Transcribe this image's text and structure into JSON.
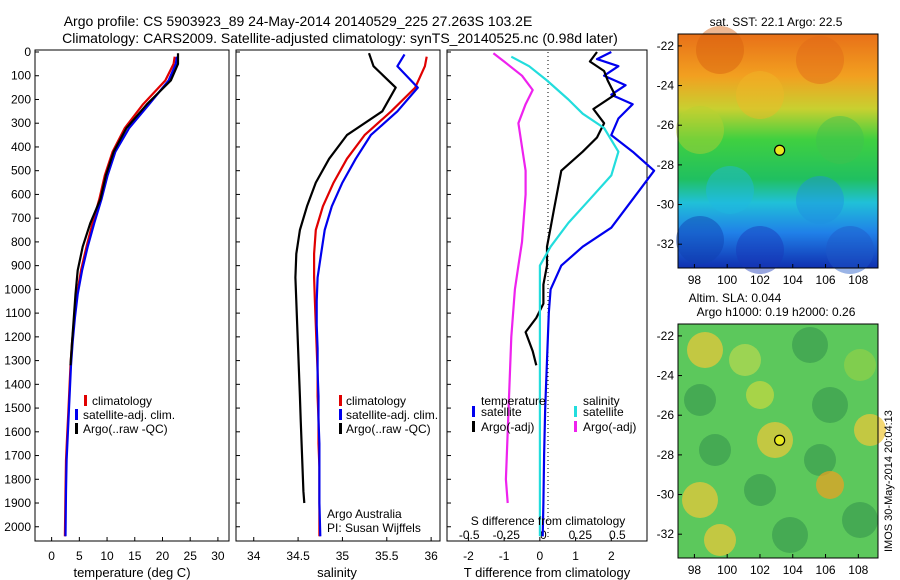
{
  "header": {
    "line1": "Argo profile: CS 5903923_89 24-May-2014 20140529_225 27.263S 103.2E",
    "line2": "Climatology: CARS2009. Satellite-adjusted climatology: synTS_20140525.nc (0.98d later)"
  },
  "colors": {
    "red": "#e00000",
    "blue": "#0000ee",
    "black": "#000000",
    "cyan": "#22dddd",
    "magenta": "#ee22ee"
  },
  "depth_axis": {
    "ticks": [
      "0",
      "100",
      "200",
      "300",
      "400",
      "500",
      "600",
      "700",
      "800",
      "900",
      "1000",
      "1100",
      "1200",
      "1300",
      "1400",
      "1500",
      "1600",
      "1700",
      "1800",
      "1900",
      "2000"
    ]
  },
  "chart_data": [
    {
      "type": "line",
      "xlabel": "temperature (deg C)",
      "xlim": [
        -3,
        32
      ],
      "ylim": [
        0,
        2060
      ],
      "xticks": [
        "0",
        "5",
        "10",
        "15",
        "20",
        "25",
        "30"
      ],
      "legend": [
        "climatology",
        "satellite-adj. clim.",
        "Argo(..raw -QC)"
      ],
      "series": [
        {
          "name": "climatology",
          "color": "red",
          "x": [
            22.2,
            22.0,
            20.5,
            16.5,
            13.2,
            11.0,
            9.6,
            8.6,
            7.4,
            6.3,
            5.3,
            4.6,
            4.1,
            3.7,
            3.4,
            3.2,
            3.0,
            2.8,
            2.6,
            2.5,
            2.4
          ],
          "y": [
            20,
            50,
            120,
            220,
            320,
            420,
            520,
            620,
            720,
            820,
            920,
            1020,
            1120,
            1220,
            1320,
            1420,
            1520,
            1620,
            1720,
            1850,
            2040
          ]
        },
        {
          "name": "satellite-adj. clim.",
          "color": "blue",
          "x": [
            22.6,
            22.4,
            21.1,
            17.6,
            14.0,
            11.5,
            10.1,
            9.0,
            7.7,
            6.5,
            5.5,
            4.7,
            4.2,
            3.8,
            3.5,
            3.3,
            3.1,
            2.9,
            2.7,
            2.6,
            2.5
          ],
          "y": [
            20,
            50,
            120,
            220,
            320,
            420,
            520,
            620,
            720,
            820,
            920,
            1020,
            1120,
            1220,
            1320,
            1420,
            1520,
            1620,
            1720,
            1850,
            2040
          ]
        },
        {
          "name": "Argo(..raw -QC)",
          "color": "black",
          "x": [
            22.8,
            22.8,
            21.5,
            17.2,
            13.5,
            11.2,
            9.8,
            8.8,
            7.0,
            5.6,
            4.7,
            4.3,
            4.0,
            3.7,
            3.4
          ],
          "y": [
            5,
            50,
            120,
            220,
            320,
            420,
            520,
            620,
            720,
            820,
            920,
            1020,
            1120,
            1220,
            1320
          ]
        }
      ]
    },
    {
      "type": "line",
      "xlabel": "salinity",
      "xlim": [
        33.8,
        36.1
      ],
      "ylim": [
        0,
        2060
      ],
      "xticks": [
        "34",
        "34.5",
        "35",
        "35.5",
        "36"
      ],
      "legend": [
        "climatology",
        "satellite-adj. clim.",
        "Argo(..raw -QC)"
      ],
      "annotations": [
        "Argo Australia",
        "PI: Susan Wijffels"
      ],
      "series": [
        {
          "name": "climatology",
          "color": "red",
          "x": [
            35.95,
            35.93,
            35.82,
            35.55,
            35.25,
            35.05,
            34.9,
            34.78,
            34.7,
            34.68,
            34.68,
            34.69,
            34.7,
            34.71,
            34.72,
            34.72,
            34.73,
            34.73,
            34.74,
            34.74,
            34.74
          ],
          "y": [
            20,
            60,
            150,
            250,
            350,
            450,
            550,
            650,
            750,
            850,
            950,
            1050,
            1150,
            1250,
            1350,
            1450,
            1550,
            1650,
            1750,
            1900,
            2040
          ]
        },
        {
          "name": "satellite-adj. clim.",
          "color": "blue",
          "x": [
            35.7,
            35.62,
            35.85,
            35.62,
            35.32,
            35.15,
            35.0,
            34.88,
            34.8,
            34.76,
            34.72,
            34.71,
            34.71,
            34.72,
            34.72,
            34.73,
            34.73,
            34.74,
            34.74,
            34.74,
            34.75
          ],
          "y": [
            10,
            60,
            150,
            250,
            350,
            450,
            550,
            650,
            750,
            850,
            950,
            1050,
            1150,
            1250,
            1350,
            1450,
            1550,
            1650,
            1750,
            1900,
            2040
          ]
        },
        {
          "name": "Argo(..raw -QC)",
          "color": "black",
          "x": [
            35.3,
            35.35,
            35.6,
            35.45,
            35.05,
            34.85,
            34.7,
            34.6,
            34.52,
            34.48,
            34.47,
            34.48,
            34.49,
            34.5,
            34.51,
            34.52,
            34.53,
            34.54,
            34.55,
            34.56,
            34.57
          ],
          "y": [
            5,
            60,
            150,
            250,
            350,
            450,
            550,
            650,
            750,
            850,
            950,
            1050,
            1150,
            1250,
            1350,
            1450,
            1550,
            1650,
            1750,
            1850,
            1900
          ]
        }
      ]
    },
    {
      "type": "line",
      "xlabel": "T difference from climatology",
      "xlim": [
        -2.6,
        3.0
      ],
      "ylim": [
        0,
        2060
      ],
      "xticks": [
        "-2",
        "-1",
        "0",
        "1",
        "2"
      ],
      "top_xlabel": "S difference from climatology",
      "top_xticks": [
        "-0.5",
        "-0.25",
        "0",
        "0.25",
        "0.5"
      ],
      "legend_titles": [
        "temperature",
        "salinity"
      ],
      "legend": [
        "satellite",
        "Argo(-adj)",
        "satellite",
        "Argo(-adj)"
      ],
      "series": [
        {
          "name": "satellite",
          "group": "temperature",
          "color": "blue",
          "x": [
            2.0,
            1.6,
            2.2,
            1.8,
            2.4,
            2.0,
            2.6,
            2.2,
            2.0,
            2.6,
            3.2,
            2.8,
            2.4,
            2.0,
            1.2,
            0.6,
            0.3,
            0.25,
            0.2,
            0.15,
            0.12,
            0.1,
            0.08
          ],
          "y": [
            0,
            30,
            60,
            100,
            140,
            180,
            220,
            280,
            350,
            420,
            500,
            580,
            660,
            740,
            820,
            900,
            1000,
            1100,
            1300,
            1500,
            1700,
            1900,
            2040
          ]
        },
        {
          "name": "Argo(-adj)",
          "group": "temperature",
          "color": "black",
          "x": [
            1.6,
            1.4,
            1.8,
            1.9,
            2.1,
            1.5,
            1.8,
            1.6,
            1.2,
            0.6,
            0.5,
            0.4,
            0.3,
            0.2,
            0.2,
            0.1,
            0.1,
            -0.1,
            -0.4,
            -0.2,
            -0.1
          ],
          "y": [
            0,
            40,
            80,
            120,
            180,
            240,
            300,
            360,
            420,
            500,
            580,
            660,
            740,
            820,
            900,
            980,
            1060,
            1120,
            1180,
            1260,
            1320
          ]
        },
        {
          "name": "satellite",
          "group": "salinity",
          "color": "cyan",
          "x": [
            -0.8,
            -0.3,
            0.2,
            0.8,
            1.2,
            1.8,
            2.2,
            2.0,
            1.4,
            0.8,
            0.3,
            0.0,
            0.0,
            0.0,
            0.0,
            0.0,
            0.0,
            0.0,
            0.0,
            0.0,
            0.0
          ],
          "y": [
            20,
            60,
            120,
            200,
            260,
            320,
            420,
            520,
            620,
            720,
            820,
            900,
            1000,
            1100,
            1200,
            1400,
            1600,
            1800,
            1900,
            2000,
            2040
          ]
        },
        {
          "name": "Argo(-adj)",
          "group": "salinity",
          "color": "magenta",
          "x": [
            -1.3,
            -1.0,
            -0.5,
            -0.2,
            -0.4,
            -0.6,
            -0.5,
            -0.4,
            -0.4,
            -0.45,
            -0.5,
            -0.6,
            -0.7,
            -0.75,
            -0.8,
            -0.85,
            -0.9,
            -0.95,
            -0.9
          ],
          "y": [
            5,
            40,
            100,
            160,
            220,
            300,
            400,
            500,
            600,
            700,
            800,
            900,
            1000,
            1100,
            1200,
            1400,
            1600,
            1800,
            1900
          ]
        }
      ]
    },
    {
      "type": "heatmap",
      "title": "sat. SST: 22.1  Argo: 22.5",
      "xticks": [
        "98",
        "100",
        "102",
        "104",
        "106",
        "108"
      ],
      "yticks": [
        "-22",
        "-24",
        "-26",
        "-28",
        "-30",
        "-32"
      ],
      "xlim": [
        97.0,
        109.2
      ],
      "ylim": [
        -33.2,
        -21.4
      ],
      "marker": {
        "lon": 103.2,
        "lat": -27.263
      }
    },
    {
      "type": "heatmap",
      "title_line1": "Altim. SLA: 0.044",
      "title_line2": "Argo h1000: 0.19 h2000: 0.26",
      "xticks": [
        "98",
        "100",
        "102",
        "104",
        "106",
        "108"
      ],
      "yticks": [
        "-22",
        "-24",
        "-26",
        "-28",
        "-30",
        "-32"
      ],
      "xlim": [
        97.0,
        109.2
      ],
      "ylim": [
        -33.2,
        -21.4
      ],
      "marker": {
        "lon": 103.2,
        "lat": -27.263
      }
    }
  ],
  "footer": {
    "stamp": "IMOS 30-May-2014 20:04:13"
  }
}
